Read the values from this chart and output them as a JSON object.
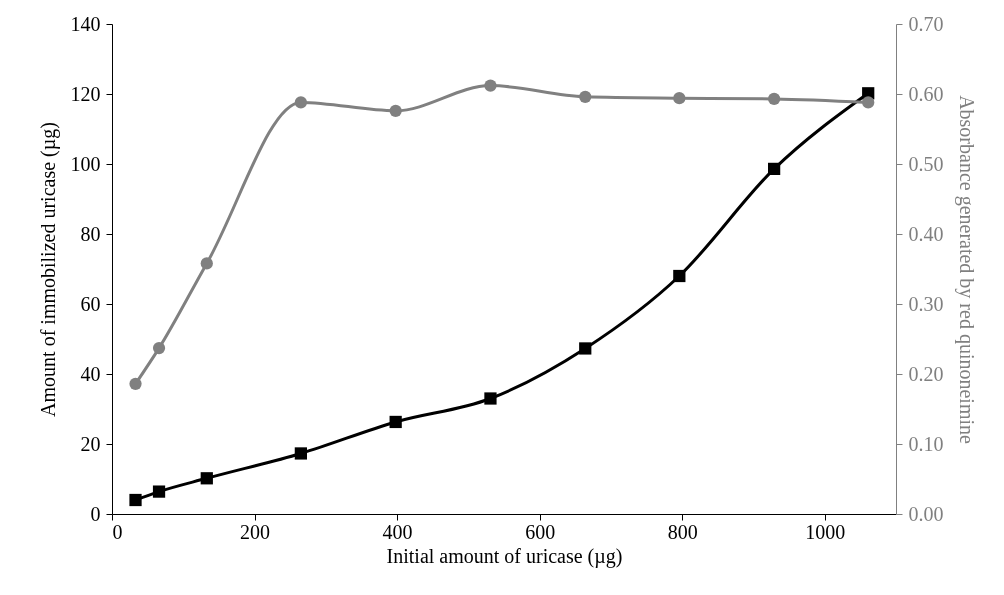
{
  "chart_data": {
    "type": "line",
    "xlabel": "Initial amount of uricase (µg)",
    "ylabel": "Amount of immobilized uricase (µg)",
    "y2label": "Absorbance generated  by red quinoneimine",
    "x": [
      33,
      66,
      133,
      265,
      398,
      531,
      664,
      796,
      929,
      1061
    ],
    "series": [
      {
        "color": "#000000",
        "marker": "square",
        "values": [
          4.0,
          6.4,
          10.2,
          17.3,
          26.3,
          33.0,
          47.3,
          68.0,
          98.6,
          120.2
        ]
      },
      {
        "color": "#808080",
        "marker": "circle",
        "axis": "y2",
        "values": [
          0.186,
          0.237,
          0.358,
          0.588,
          0.576,
          0.612,
          0.596,
          0.594,
          0.593,
          0.588
        ]
      }
    ],
    "xlim": [
      0,
      1100
    ],
    "xticks": [
      0,
      200,
      400,
      600,
      800,
      1000
    ],
    "ylim": [
      0,
      140
    ],
    "yticks": [
      0,
      20,
      40,
      60,
      80,
      100,
      120,
      140
    ],
    "y2lim": [
      0,
      0.7
    ],
    "y2ticks": [
      {
        "value": 0,
        "label": "0.00"
      },
      {
        "value": 0.1,
        "label": "0.10"
      },
      {
        "value": 0.2,
        "label": "0.20"
      },
      {
        "value": 0.3,
        "label": "0.30"
      },
      {
        "value": 0.4,
        "label": "0.40"
      },
      {
        "value": 0.5,
        "label": "0.50"
      },
      {
        "value": 0.6,
        "label": "0.60"
      },
      {
        "value": 0.7,
        "label": "0.70"
      }
    ],
    "grid": false,
    "line_style": "solid"
  }
}
